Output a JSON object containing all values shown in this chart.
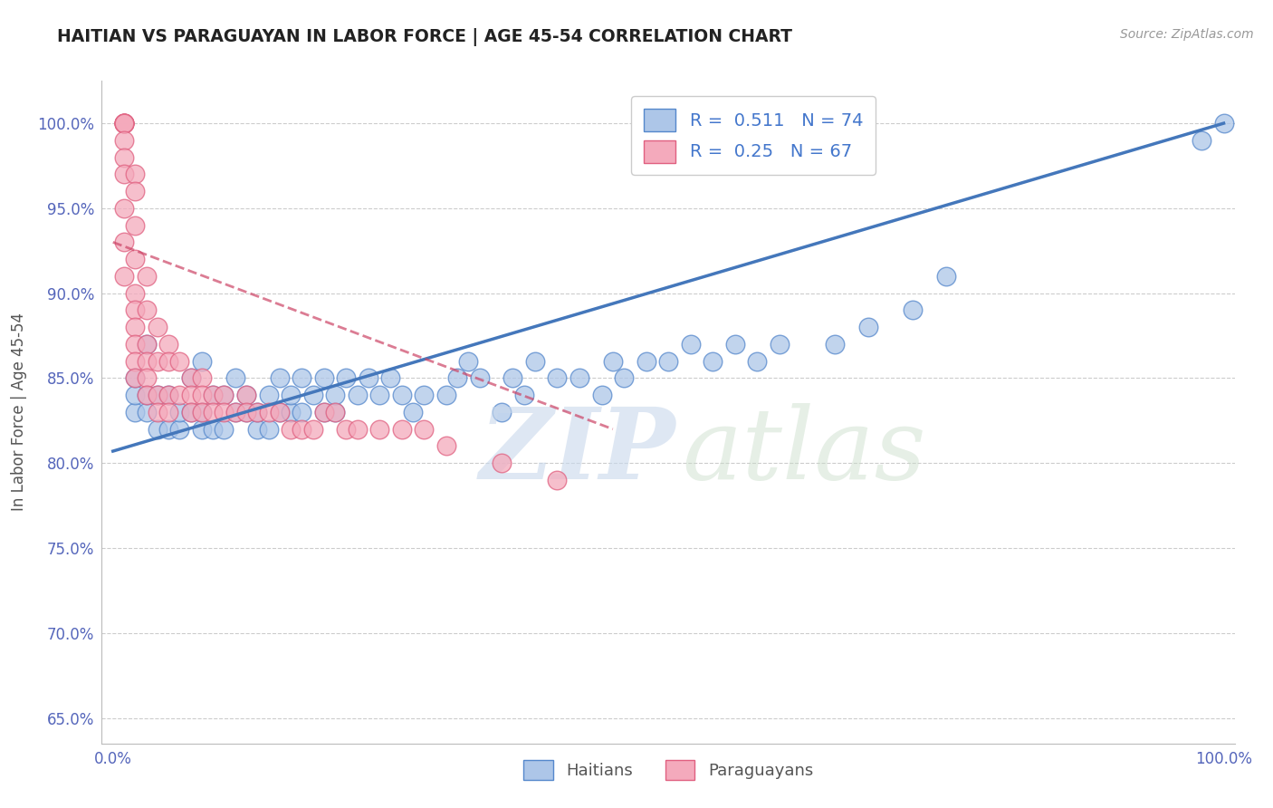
{
  "title": "HAITIAN VS PARAGUAYAN IN LABOR FORCE | AGE 45-54 CORRELATION CHART",
  "source": "Source: ZipAtlas.com",
  "ylabel": "In Labor Force | Age 45-54",
  "xlim": [
    -0.01,
    1.01
  ],
  "ylim": [
    0.635,
    1.025
  ],
  "yticks": [
    0.65,
    0.7,
    0.75,
    0.8,
    0.85,
    0.9,
    0.95,
    1.0
  ],
  "blue_color": "#adc6e8",
  "pink_color": "#f4aabc",
  "blue_edge": "#5588cc",
  "pink_edge": "#e06080",
  "blue_line": "#4477bb",
  "pink_line": "#cc4466",
  "title_color": "#222222",
  "axis_label_color": "#555555",
  "tick_color": "#5566bb",
  "grid_color": "#cccccc",
  "legend_text_color": "#4477cc",
  "R_blue": 0.511,
  "N_blue": 74,
  "R_pink": 0.25,
  "N_pink": 67,
  "haitians_x": [
    0.02,
    0.02,
    0.02,
    0.03,
    0.03,
    0.03,
    0.04,
    0.04,
    0.05,
    0.05,
    0.06,
    0.06,
    0.07,
    0.07,
    0.08,
    0.08,
    0.08,
    0.09,
    0.09,
    0.1,
    0.1,
    0.11,
    0.11,
    0.12,
    0.12,
    0.13,
    0.13,
    0.14,
    0.14,
    0.15,
    0.15,
    0.16,
    0.16,
    0.17,
    0.17,
    0.18,
    0.19,
    0.19,
    0.2,
    0.2,
    0.21,
    0.22,
    0.23,
    0.24,
    0.25,
    0.26,
    0.27,
    0.28,
    0.3,
    0.31,
    0.32,
    0.33,
    0.35,
    0.36,
    0.37,
    0.38,
    0.4,
    0.42,
    0.44,
    0.45,
    0.46,
    0.48,
    0.5,
    0.52,
    0.54,
    0.56,
    0.58,
    0.6,
    0.65,
    0.68,
    0.72,
    0.75,
    0.98,
    1.0
  ],
  "haitians_y": [
    0.83,
    0.84,
    0.85,
    0.83,
    0.84,
    0.87,
    0.82,
    0.84,
    0.82,
    0.84,
    0.82,
    0.83,
    0.83,
    0.85,
    0.82,
    0.83,
    0.86,
    0.82,
    0.84,
    0.82,
    0.84,
    0.83,
    0.85,
    0.83,
    0.84,
    0.82,
    0.83,
    0.82,
    0.84,
    0.83,
    0.85,
    0.83,
    0.84,
    0.83,
    0.85,
    0.84,
    0.83,
    0.85,
    0.83,
    0.84,
    0.85,
    0.84,
    0.85,
    0.84,
    0.85,
    0.84,
    0.83,
    0.84,
    0.84,
    0.85,
    0.86,
    0.85,
    0.83,
    0.85,
    0.84,
    0.86,
    0.85,
    0.85,
    0.84,
    0.86,
    0.85,
    0.86,
    0.86,
    0.87,
    0.86,
    0.87,
    0.86,
    0.87,
    0.87,
    0.88,
    0.89,
    0.91,
    0.99,
    1.0
  ],
  "paraguayans_x": [
    0.01,
    0.01,
    0.01,
    0.01,
    0.01,
    0.01,
    0.01,
    0.01,
    0.01,
    0.01,
    0.01,
    0.01,
    0.02,
    0.02,
    0.02,
    0.02,
    0.02,
    0.02,
    0.02,
    0.02,
    0.02,
    0.02,
    0.03,
    0.03,
    0.03,
    0.03,
    0.03,
    0.03,
    0.04,
    0.04,
    0.04,
    0.04,
    0.05,
    0.05,
    0.05,
    0.05,
    0.06,
    0.06,
    0.07,
    0.07,
    0.07,
    0.08,
    0.08,
    0.08,
    0.09,
    0.09,
    0.1,
    0.1,
    0.11,
    0.12,
    0.12,
    0.13,
    0.14,
    0.15,
    0.16,
    0.17,
    0.18,
    0.19,
    0.2,
    0.21,
    0.22,
    0.24,
    0.26,
    0.28,
    0.3,
    0.35,
    0.4
  ],
  "paraguayans_y": [
    1.0,
    1.0,
    1.0,
    1.0,
    1.0,
    1.0,
    0.99,
    0.98,
    0.97,
    0.95,
    0.93,
    0.91,
    0.97,
    0.96,
    0.94,
    0.92,
    0.9,
    0.89,
    0.88,
    0.87,
    0.86,
    0.85,
    0.91,
    0.89,
    0.87,
    0.86,
    0.85,
    0.84,
    0.88,
    0.86,
    0.84,
    0.83,
    0.87,
    0.86,
    0.84,
    0.83,
    0.86,
    0.84,
    0.85,
    0.84,
    0.83,
    0.85,
    0.84,
    0.83,
    0.84,
    0.83,
    0.84,
    0.83,
    0.83,
    0.84,
    0.83,
    0.83,
    0.83,
    0.83,
    0.82,
    0.82,
    0.82,
    0.83,
    0.83,
    0.82,
    0.82,
    0.82,
    0.82,
    0.82,
    0.81,
    0.8,
    0.79
  ],
  "blue_trendline_x0": 0.0,
  "blue_trendline_y0": 0.807,
  "blue_trendline_x1": 1.0,
  "blue_trendline_y1": 1.0,
  "pink_trendline_x0": 0.0,
  "pink_trendline_y0": 0.93,
  "pink_trendline_x1": 0.45,
  "pink_trendline_y1": 0.82
}
